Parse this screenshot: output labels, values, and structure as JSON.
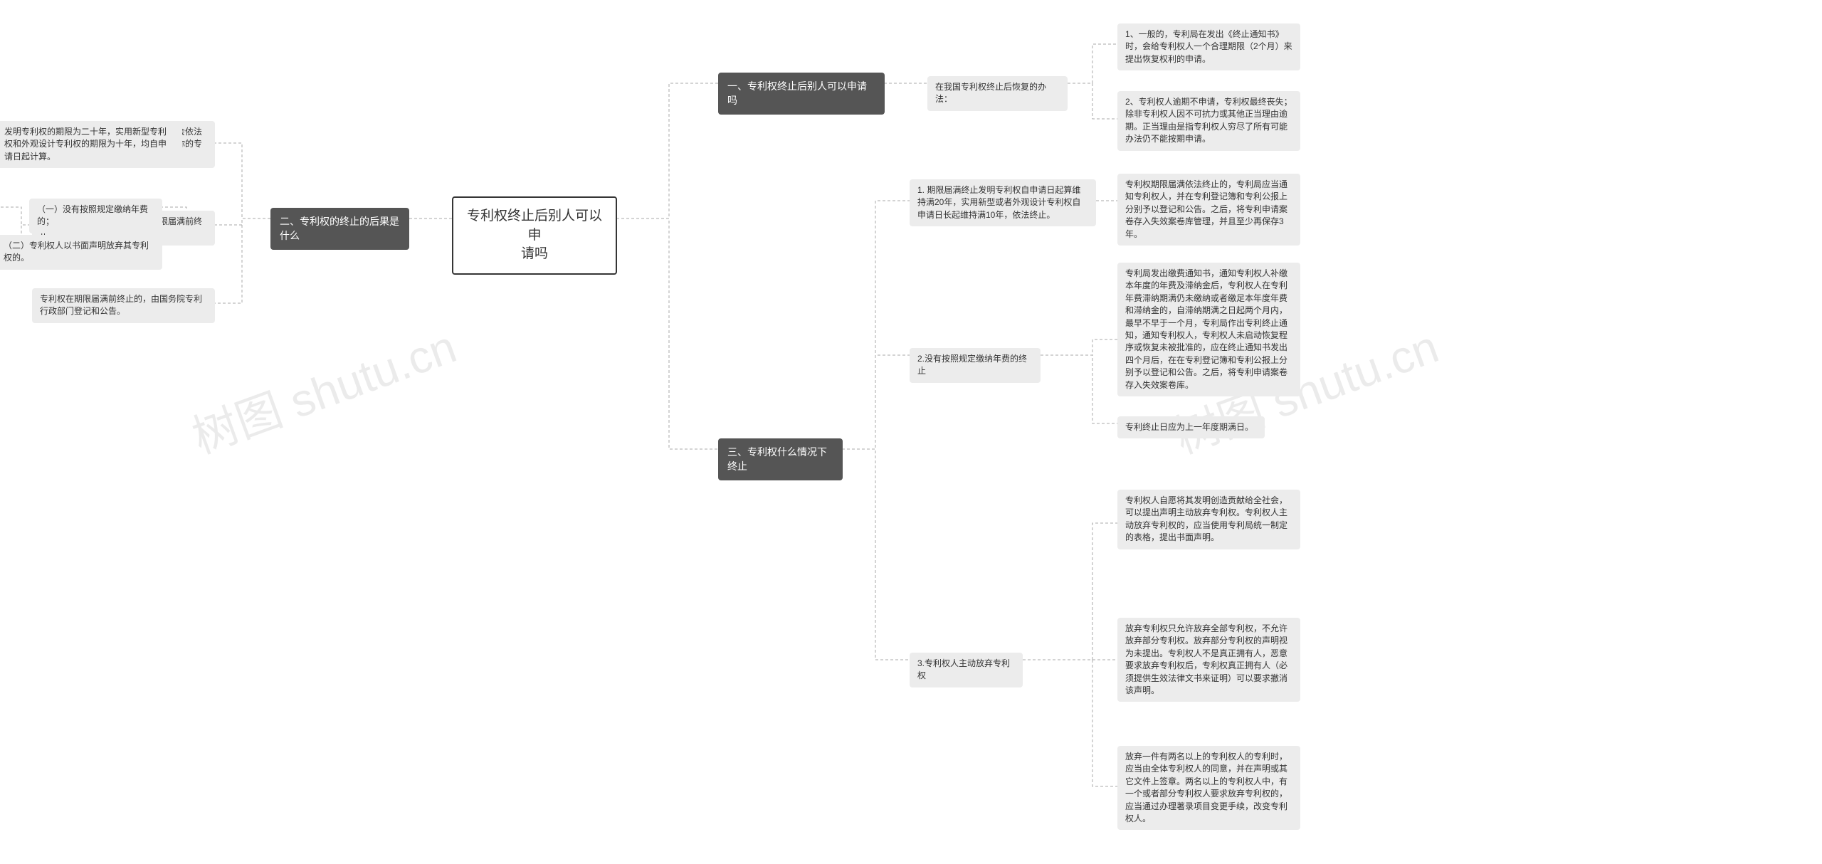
{
  "watermarks": {
    "left": "树图 shutu.cn",
    "right": "树图 shutu.cn"
  },
  "center": {
    "label": "专利权终止后别人可以申\n请吗"
  },
  "branches": {
    "r1": {
      "title": "一、专利权终止后别人可以申请吗",
      "child": {
        "label": "在我国专利权终止后恢复的办法：",
        "leaves": [
          "1、一般的，专利局在发出《终止通知书》时，会给专利权人一个合理期限（2个月）来提出恢复权利的申请。",
          "2、专利权人逾期不申请，专利权最终丧失；除非专利权人因不可抗力或其他正当理由逾期。正当理由是指专利权人穷尽了所有可能办法仍不能按期申请。"
        ]
      }
    },
    "r3": {
      "title": "三、专利权什么情况下终止",
      "children": [
        {
          "label": "1. 期限届满终止发明专利权自申请日起算维持满20年，实用新型或者外观设计专利权自申请日长起维持满10年，依法终止。",
          "leaves": [
            "专利权期限届满依法终止的，专利局应当通知专利权人，并在专利登记簿和专利公报上分别予以登记和公告。之后，将专利申请案卷存入失效案卷库管理，并且至少再保存3年。"
          ]
        },
        {
          "label": "2.没有按照规定缴纳年费的终止",
          "leaves": [
            "专利局发出缴费通知书，通知专利权人补缴本年度的年费及滞纳金后，专利权人在专利年费滞纳期满仍未缴纳或者缴足本年度年费和滞纳金的，自滞纳期满之日起两个月内，最早不早于一个月，专利局作出专利终止通知，通知专利权人，专利权人未启动恢复程序或恢复未被批准的，应在终止通知书发出四个月后，在在专利登记簿和专利公报上分别予以登记和公告。之后，将专利申请案卷存入失效案卷库。",
            "专利终止日应为上一年度期满日。"
          ]
        },
        {
          "label": "3.专利权人主动放弃专利权",
          "leaves": [
            "专利权人自愿将其发明创造贡献给全社会，可以提出声明主动放弃专利权。专利权人主动放弃专利权的，应当使用专利局统一制定的表格，提出书面声明。",
            "放弃专利权只允许放弃全部专利权，不允许放弃部分专利权。放弃部分专利权的声明视为未提出。专利权人不是真正拥有人，恶意要求放弃专利权后，专利权真正拥有人（必须提供生效法律文书来证明）可以要求撤消该声明。",
            "放弃一件有两名以上的专利权人的专利时，应当由全体专利权人的同意，并在声明或其它文件上签章。两名以上的专利权人中，有一个或者部分专利权人要求放弃专利权的，应当通过办理著录项目变更手续，改变专利权人。"
          ]
        }
      ]
    },
    "l2": {
      "title": "二、专利权的终止的后果是什么",
      "children": [
        {
          "label": "专利权终止后，专利权人的合法权益会依法终止，其他企业和个人可使用、销售你的专利产品。专利权人需要知道以下事项：",
          "leaves": [
            "发明专利权的期限为二十年，实用新型专利权和外观设计专利权的期限为十年，均自申请日起计算。"
          ]
        },
        {
          "label": "有下列情形之一的，专利权在期限届满前终止：",
          "leaves": [
            "（一）没有按照规定缴纳年费的；",
            "（二）专利权人以书面声明放弃其专利权的。"
          ]
        },
        {
          "label": "专利权在期限届满前终止的，由国务院专利行政部门登记和公告。"
        }
      ]
    }
  },
  "styling": {
    "center_border": "#353535",
    "dark_bg": "#555555",
    "dark_fg": "#ffffff",
    "leaf_bg": "#ececec",
    "leaf_fg": "#333333",
    "connector_stroke": "#aaaaaa",
    "connector_dash": "4 3",
    "bg": "#ffffff",
    "font_base": 13,
    "font_center": 19,
    "watermark_color": "rgba(0,0,0,0.08)",
    "watermark_rotation_deg": -20
  }
}
